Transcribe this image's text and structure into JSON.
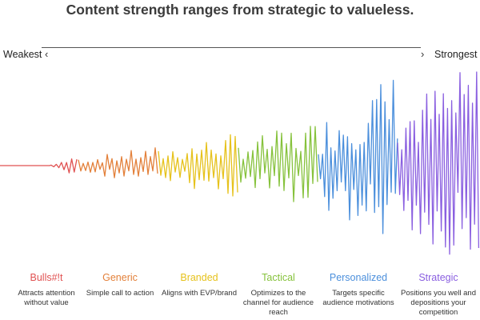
{
  "title": "Content strength ranges from strategic to valueless.",
  "axis": {
    "left_label": "Weakest",
    "right_label": "Strongest",
    "left_chevron": "‹",
    "right_chevron": "›"
  },
  "categories": [
    {
      "name": "Bulls#!t",
      "description": "Attracts attention without value",
      "color": "#e05252"
    },
    {
      "name": "Generic",
      "description": "Simple call to action",
      "color": "#e3803a"
    },
    {
      "name": "Branded",
      "description": "Aligns with EVP/brand",
      "color": "#e6c21c"
    },
    {
      "name": "Tactical",
      "description": "Optimizes to the channel for audience reach",
      "color": "#86c23c"
    },
    {
      "name": "Personalized",
      "description": "Targets specific audience motivations",
      "color": "#4b8fdc"
    },
    {
      "name": "Strategic",
      "description": "Positions you well and depositions your competition",
      "color": "#8a5fe0"
    }
  ]
}
